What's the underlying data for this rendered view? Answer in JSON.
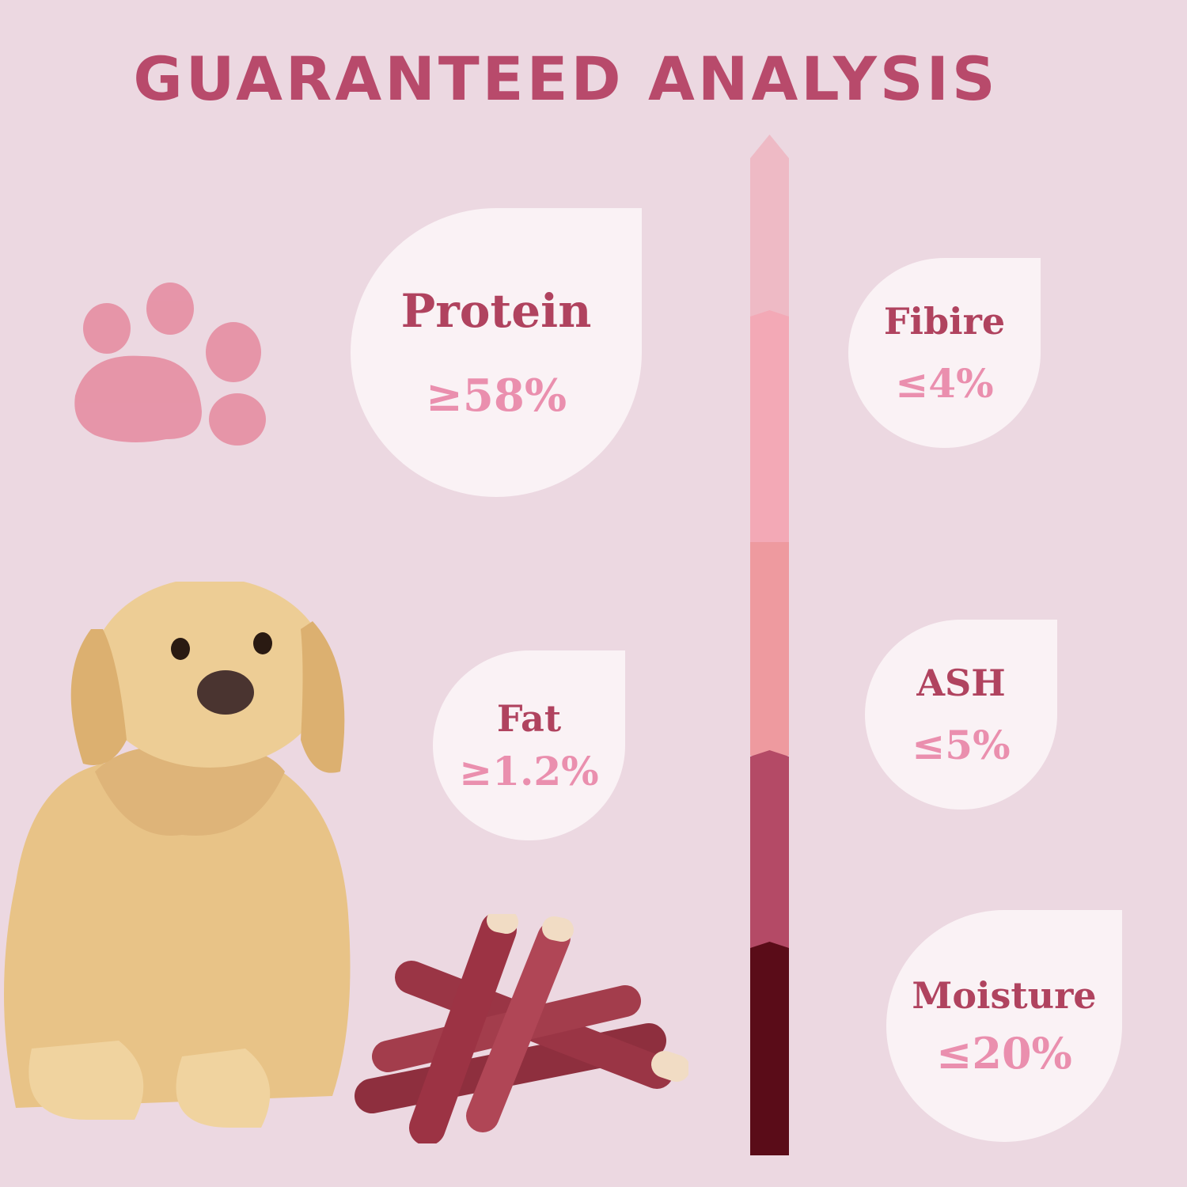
{
  "title": "GUARANTEED ANALYSIS",
  "nutrients": [
    {
      "label": "Protein",
      "value": "≥58%"
    },
    {
      "label": "Fibire",
      "value": "≤4%"
    },
    {
      "label": "Fat",
      "value": "≥1.2%"
    },
    {
      "label": "ASH",
      "value": "≤5%"
    },
    {
      "label": "Moisture",
      "value": "≤20%"
    }
  ],
  "colors": {
    "background": "#ecd8e1",
    "title": "#b84a6b",
    "label": "#b0435f",
    "value": "#ea8fae",
    "bar_segments": [
      "#eebac5",
      "#f3a9b6",
      "#ee9a9f",
      "#b44a66",
      "#5a0c18"
    ]
  },
  "icons": [
    "paw-print-icon",
    "dog-illustration",
    "treat-sticks-illustration"
  ]
}
